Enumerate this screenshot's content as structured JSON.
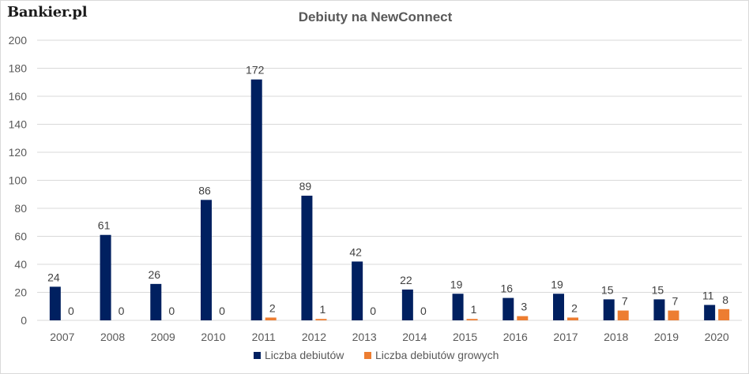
{
  "brand": "Bankier.pl",
  "chart_data": {
    "type": "bar",
    "title": "Debiuty na NewConnect",
    "xlabel": "",
    "ylabel": "",
    "categories": [
      "2007",
      "2008",
      "2009",
      "2010",
      "2011",
      "2012",
      "2013",
      "2014",
      "2015",
      "2016",
      "2017",
      "2018",
      "2019",
      "2020"
    ],
    "series": [
      {
        "name": "Liczba debiutów",
        "color": "#002060",
        "values": [
          24,
          61,
          26,
          86,
          172,
          89,
          42,
          22,
          19,
          16,
          19,
          15,
          15,
          11
        ]
      },
      {
        "name": "Liczba debiutów growych",
        "color": "#ED7D31",
        "values": [
          0,
          0,
          0,
          0,
          2,
          1,
          0,
          0,
          1,
          3,
          2,
          7,
          7,
          8
        ]
      }
    ],
    "ylim": [
      0,
      200
    ],
    "yticks": [
      0,
      20,
      40,
      60,
      80,
      100,
      120,
      140,
      160,
      180,
      200
    ],
    "grid": true,
    "legend_position": "bottom",
    "data_labels": true
  }
}
